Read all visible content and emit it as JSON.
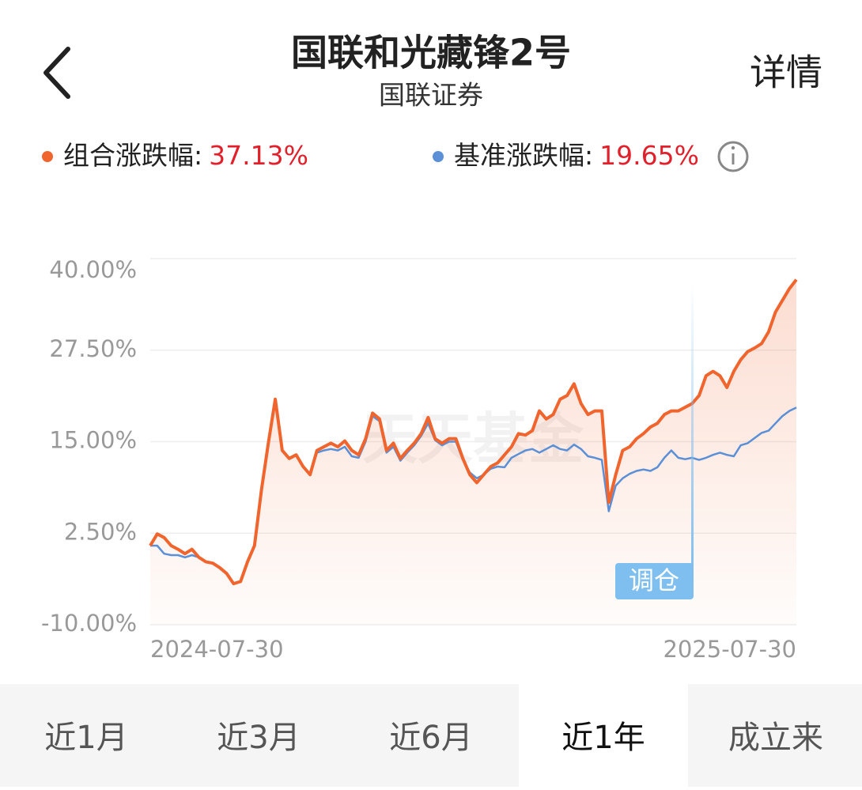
{
  "header": {
    "title": "国联和光藏锋2号",
    "subtitle": "国联证券",
    "detail": "详情"
  },
  "chart_data": {
    "type": "line",
    "watermark": "天天基金",
    "annotation": "调仓",
    "categories": [
      "2024-07-30",
      null,
      null,
      null,
      null,
      null,
      null,
      null,
      null,
      null,
      null,
      null,
      null,
      null,
      null,
      null,
      null,
      null,
      null,
      null,
      null,
      null,
      null,
      null,
      null,
      null,
      null,
      null,
      null,
      null,
      null,
      null,
      null,
      null,
      null,
      null,
      null,
      null,
      null,
      null,
      null,
      null,
      null,
      null,
      null,
      null,
      null,
      null,
      null,
      null,
      null,
      null,
      null,
      null,
      null,
      null,
      null,
      null,
      null,
      null,
      null,
      null,
      null,
      null,
      null,
      null,
      null,
      null,
      null,
      null,
      null,
      null,
      null,
      null,
      null,
      null,
      null,
      null,
      null,
      null,
      null,
      null,
      null,
      null,
      null,
      null,
      null,
      null,
      null,
      null,
      null,
      null,
      null,
      "2025-07-30"
    ],
    "series": [
      {
        "name": "组合涨跌幅:",
        "change_label": "37.13%",
        "color": "#f0642d",
        "values": [
          0.8,
          2.4,
          1.9,
          0.8,
          0.3,
          -0.3,
          0.3,
          -0.8,
          -1.4,
          -1.6,
          -2.2,
          -3.0,
          -4.4,
          -4.1,
          -1.4,
          0.8,
          8.4,
          14.8,
          20.8,
          13.8,
          12.7,
          13.2,
          11.6,
          10.5,
          13.8,
          14.3,
          14.8,
          14.3,
          15.1,
          13.8,
          13.2,
          15.4,
          18.9,
          18.1,
          13.8,
          14.8,
          12.7,
          13.8,
          14.8,
          16.1,
          18.3,
          15.4,
          14.8,
          15.4,
          15.4,
          12.7,
          10.5,
          9.4,
          10.5,
          11.6,
          12.1,
          13.2,
          14.3,
          16.1,
          15.9,
          16.5,
          19.2,
          18.1,
          18.7,
          20.8,
          21.3,
          22.9,
          20.2,
          18.7,
          19.2,
          19.2,
          6.7,
          10.5,
          13.8,
          14.3,
          15.4,
          16.1,
          17.0,
          17.5,
          18.7,
          19.2,
          19.2,
          19.7,
          20.2,
          21.3,
          24.0,
          24.6,
          24.0,
          22.4,
          24.6,
          26.2,
          27.3,
          27.8,
          28.4,
          30.0,
          32.7,
          34.3,
          35.9,
          37.13
        ]
      },
      {
        "name": "基准涨跌幅:",
        "change_label": "19.65%",
        "color": "#5b8fd6",
        "values": [
          0.8,
          0.8,
          -0.3,
          -0.5,
          -0.5,
          -0.8,
          -0.5,
          -0.8,
          -1.4,
          -1.6,
          -2.2,
          -3.0,
          -4.4,
          -4.1,
          -1.4,
          0.8,
          8.4,
          14.8,
          20.8,
          13.8,
          12.7,
          13.2,
          11.6,
          10.5,
          13.5,
          13.8,
          14.0,
          13.8,
          14.3,
          13.0,
          12.8,
          15.0,
          18.5,
          17.8,
          13.5,
          14.3,
          12.4,
          13.5,
          14.5,
          15.8,
          17.5,
          15.2,
          14.5,
          15.0,
          15.0,
          12.5,
          10.8,
          10.0,
          10.5,
          11.3,
          11.6,
          11.5,
          12.8,
          13.3,
          13.8,
          14.0,
          13.5,
          14.0,
          14.5,
          14.0,
          13.8,
          14.6,
          14.0,
          13.0,
          12.8,
          12.5,
          5.5,
          9.0,
          10.0,
          10.6,
          11.0,
          11.2,
          11.0,
          11.5,
          12.8,
          13.8,
          12.8,
          12.6,
          12.8,
          12.5,
          12.8,
          13.2,
          13.5,
          13.2,
          13.0,
          14.5,
          14.8,
          15.5,
          16.2,
          16.5,
          17.5,
          18.5,
          19.2,
          19.65
        ]
      }
    ],
    "ylim": [
      -10,
      40
    ],
    "yticks": [
      {
        "value": -10,
        "label": "-10.00%"
      },
      {
        "value": 2.5,
        "label": "2.50%"
      },
      {
        "value": 15,
        "label": "15.00%"
      },
      {
        "value": 27.5,
        "label": "27.50%"
      },
      {
        "value": 40,
        "label": "40.00%"
      }
    ],
    "grid": true
  },
  "tabs": {
    "items": [
      "近1月",
      "近3月",
      "近6月",
      "近1年",
      "成立来"
    ],
    "active": 3
  }
}
